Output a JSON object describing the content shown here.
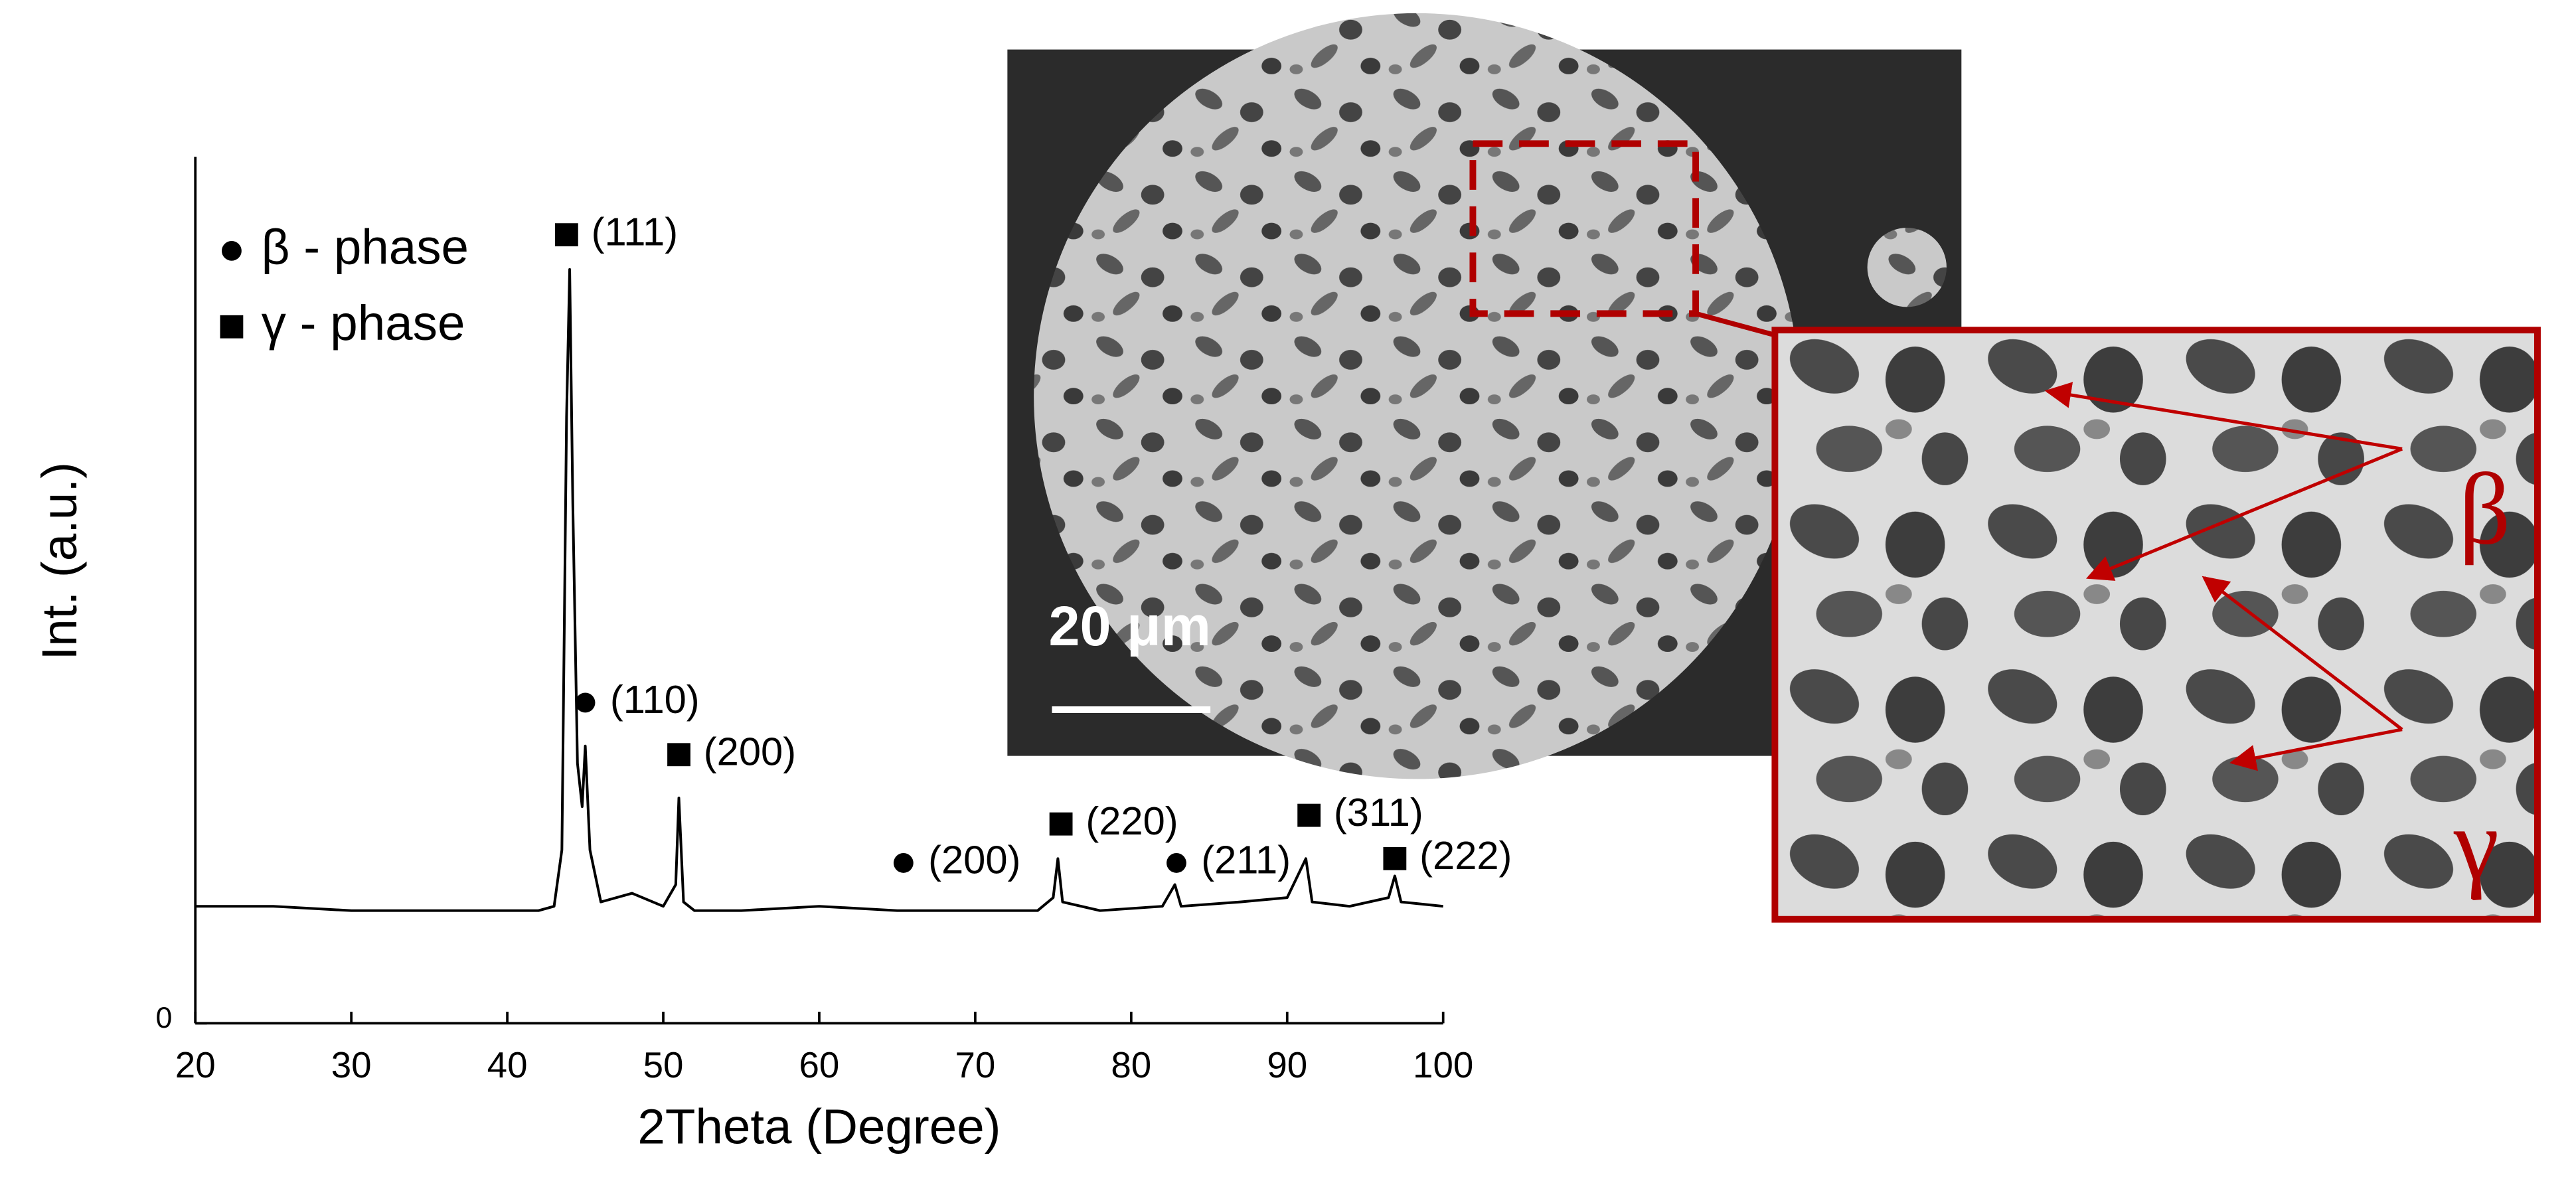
{
  "chart_data": {
    "type": "line",
    "xlabel": "2Theta (Degree)",
    "ylabel": "Int. (a.u.)",
    "xlim": [
      20,
      100
    ],
    "xticks": [
      20,
      30,
      40,
      50,
      60,
      70,
      80,
      90,
      100
    ],
    "ylim": [
      0,
      100
    ],
    "yticks": [
      0
    ],
    "color": "#000000",
    "x": [
      20,
      25,
      30,
      35,
      40,
      42,
      43,
      43.5,
      43.8,
      44.0,
      44.2,
      44.5,
      44.8,
      45.0,
      45.3,
      46,
      48,
      50,
      50.8,
      51.0,
      51.3,
      52,
      55,
      60,
      65,
      70,
      74,
      75,
      75.3,
      75.6,
      78,
      82,
      82.8,
      83.2,
      87,
      90,
      91.2,
      91.6,
      94,
      96.5,
      96.9,
      97.3,
      100
    ],
    "values": [
      13.5,
      13.5,
      13,
      13,
      13,
      13,
      13.5,
      20,
      70,
      87,
      60,
      30,
      25,
      32,
      20,
      14,
      15,
      13.5,
      16,
      26,
      14,
      13,
      13,
      13.5,
      13,
      13,
      13,
      14.5,
      19,
      14,
      13,
      13.5,
      16,
      13.5,
      14,
      14.5,
      19,
      14,
      13.5,
      14.5,
      17,
      14,
      13.5
    ],
    "legend": [
      {
        "marker": "circle",
        "label": "β - phase"
      },
      {
        "marker": "square",
        "label": "γ - phase"
      }
    ],
    "annotations": [
      {
        "marker": "square",
        "text": "(111)",
        "x": 43.8,
        "y": 91
      },
      {
        "marker": "circle",
        "text": "(110)",
        "x": 45.0,
        "y": 37
      },
      {
        "marker": "square",
        "text": "(200)",
        "x": 51.0,
        "y": 31
      },
      {
        "marker": "circle",
        "text": "(200)",
        "x": 65.4,
        "y": 18.5
      },
      {
        "marker": "square",
        "text": "(220)",
        "x": 75.5,
        "y": 23
      },
      {
        "marker": "circle",
        "text": "(211)",
        "x": 82.9,
        "y": 18.5
      },
      {
        "marker": "square",
        "text": "(311)",
        "x": 91.4,
        "y": 24
      },
      {
        "marker": "square",
        "text": "(222)",
        "x": 96.9,
        "y": 19
      }
    ]
  },
  "micrograph": {
    "scale_bar": "20 μm",
    "labels": [
      "β",
      "γ"
    ]
  }
}
